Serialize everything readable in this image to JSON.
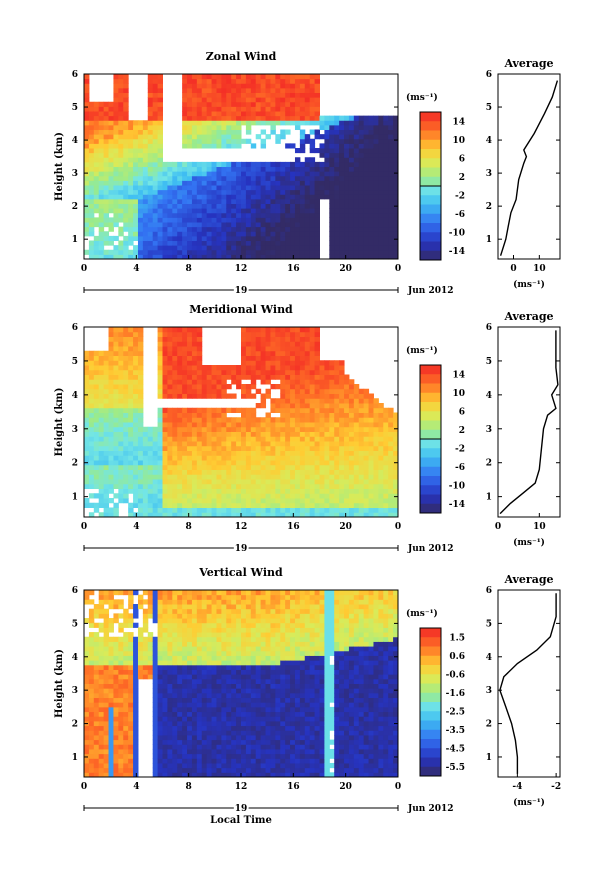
{
  "figure": {
    "date_label": "Jun 2012",
    "day_label": "19",
    "bottom_xlabel": "Local Time",
    "ylabel": "Height (km)",
    "unit_label": "(ms⁻¹)",
    "profile_xlabel": "(ms⁻¹)"
  },
  "chart_data": [
    {
      "type": "heatmap",
      "title": "Zonal Wind",
      "xlabel": "",
      "ylabel": "Height (km)",
      "xlim": [
        0,
        24
      ],
      "ylim": [
        0.4,
        6
      ],
      "x_ticks": [
        "0",
        "4",
        "8",
        "12",
        "16",
        "20",
        "0"
      ],
      "y_ticks": [
        "1",
        "2",
        "3",
        "4",
        "5",
        "6"
      ],
      "colorbar": {
        "label": "(ms⁻¹)",
        "range": [
          -16,
          16
        ],
        "ticks": [
          "14",
          "10",
          "6",
          "2",
          "-2",
          "-6",
          "-10",
          "-14"
        ]
      },
      "profile": {
        "title": "Average",
        "xlim": [
          -6,
          18
        ],
        "x_ticks": [
          "0",
          "10"
        ],
        "x": [
          -5,
          -3,
          -2,
          -1,
          1,
          2,
          4,
          5,
          4,
          8,
          12,
          15,
          17
        ],
        "y": [
          0.5,
          1,
          1.4,
          1.8,
          2.2,
          2.8,
          3.3,
          3.5,
          3.7,
          4.2,
          4.8,
          5.3,
          5.8
        ]
      }
    },
    {
      "type": "heatmap",
      "title": "Meridional Wind",
      "xlabel": "",
      "ylabel": "Height (km)",
      "xlim": [
        0,
        24
      ],
      "ylim": [
        0.4,
        6
      ],
      "x_ticks": [
        "0",
        "4",
        "8",
        "12",
        "16",
        "20",
        "0"
      ],
      "y_ticks": [
        "1",
        "2",
        "3",
        "4",
        "5",
        "6"
      ],
      "colorbar": {
        "label": "(ms⁻¹)",
        "range": [
          -16,
          16
        ],
        "ticks": [
          "14",
          "10",
          "6",
          "2",
          "-2",
          "-6",
          "-10",
          "-14"
        ]
      },
      "profile": {
        "title": "Average",
        "xlim": [
          0,
          15
        ],
        "x_ticks": [
          "0",
          "10"
        ],
        "x": [
          0.5,
          3,
          6,
          9,
          10,
          10.5,
          11,
          12,
          14,
          13,
          14.5,
          14,
          14,
          14
        ],
        "y": [
          0.5,
          0.8,
          1.1,
          1.4,
          1.8,
          2.4,
          3.0,
          3.4,
          3.6,
          4.0,
          4.3,
          4.8,
          5.4,
          5.9
        ]
      }
    },
    {
      "type": "heatmap",
      "title": "Vertical Wind",
      "xlabel": "Local Time",
      "ylabel": "Height (km)",
      "xlim": [
        0,
        24
      ],
      "ylim": [
        0.4,
        6
      ],
      "x_ticks": [
        "0",
        "4",
        "8",
        "12",
        "16",
        "20",
        "0"
      ],
      "y_ticks": [
        "1",
        "2",
        "3",
        "4",
        "5",
        "6"
      ],
      "colorbar": {
        "label": "(ms⁻¹)",
        "range": [
          -6,
          2
        ],
        "ticks": [
          "1.5",
          "0.6",
          "-0.6",
          "-1.6",
          "-2.5",
          "-3.5",
          "-4.5",
          "-5.5"
        ]
      },
      "profile": {
        "title": "Average",
        "xlim": [
          -5,
          -1.8
        ],
        "x_ticks": [
          "-4",
          "-2"
        ],
        "x": [
          -4.0,
          -4.0,
          -4.1,
          -4.3,
          -4.6,
          -4.9,
          -4.7,
          -4.0,
          -3.0,
          -2.3,
          -2.0,
          -2.0
        ],
        "y": [
          0.5,
          1.0,
          1.5,
          2.0,
          2.5,
          3.0,
          3.4,
          3.8,
          4.2,
          4.6,
          5.2,
          5.9
        ]
      }
    }
  ]
}
